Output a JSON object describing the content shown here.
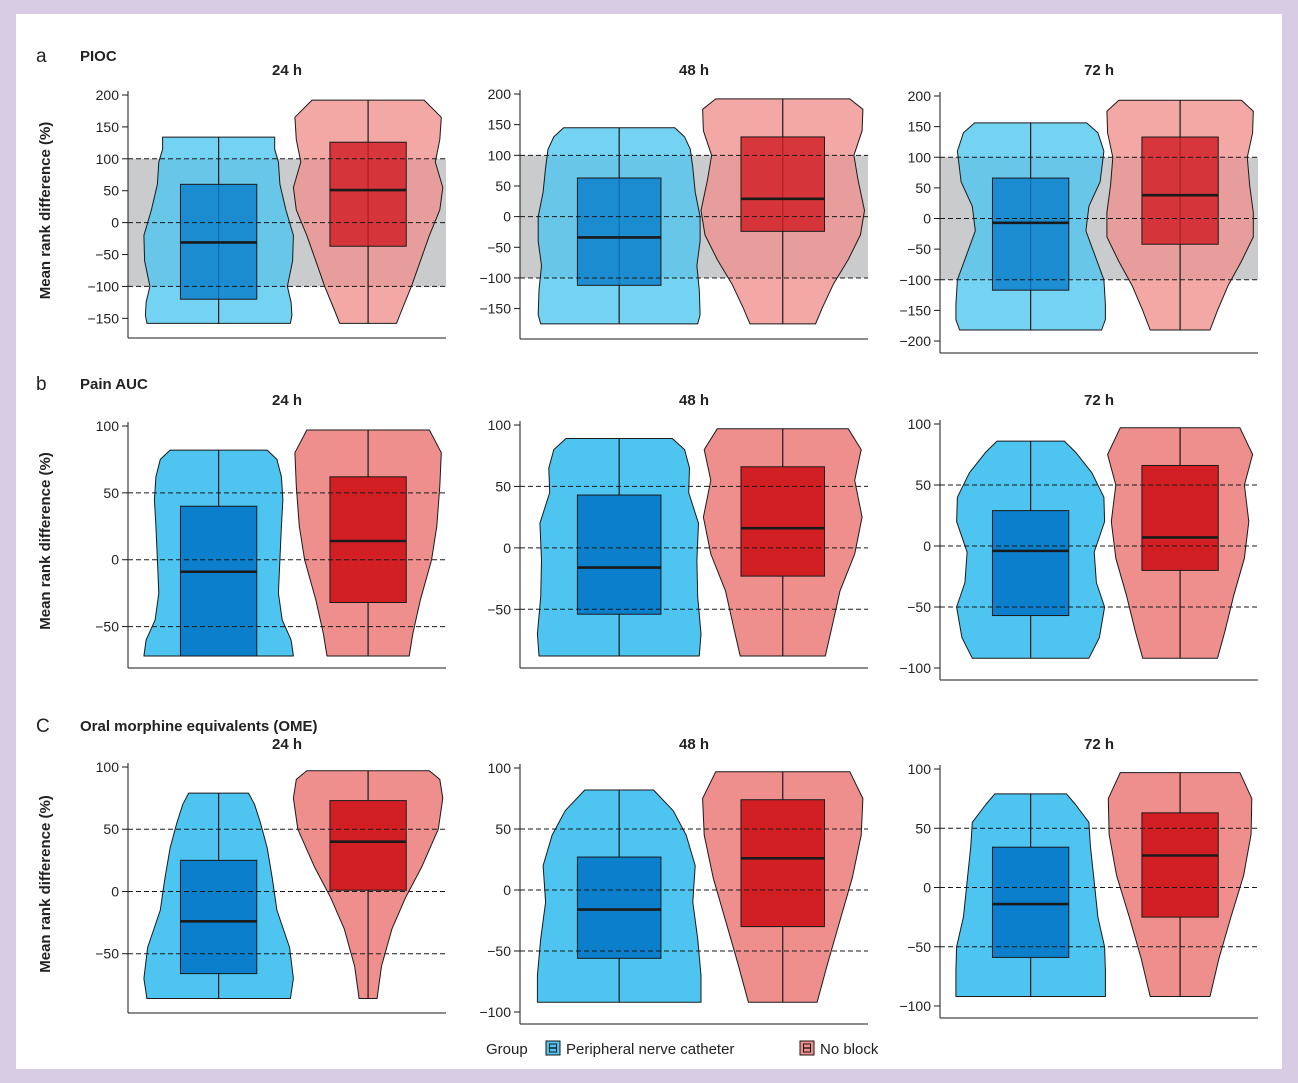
{
  "colors": {
    "catheter_violin": "#4dc5f0",
    "catheter_box": "#0b7fcc",
    "noblock_violin": "#ef8f8d",
    "noblock_box": "#d11f24",
    "band": "#c9cbcc"
  },
  "legend": {
    "title": "Group",
    "items": [
      "Peripheral nerve catheter",
      "No block"
    ]
  },
  "chart_data": [
    {
      "type": "violin",
      "panel": "a",
      "title": "PIOC",
      "subtitle": "24 h",
      "ylabel": "Mean rank difference (%)",
      "ylim": [
        -162,
        200
      ],
      "yticks": [
        200,
        150,
        100,
        50,
        0,
        -50,
        -100,
        -150
      ],
      "reference_lines": [
        100,
        0,
        -100
      ],
      "band": [
        -100,
        100
      ],
      "series": [
        {
          "name": "Peripheral nerve catheter",
          "min": -158,
          "q1": -120,
          "median": -31,
          "q3": 60,
          "max": 134,
          "violin": [
            [
              -158,
              0.96
            ],
            [
              -145,
              0.98
            ],
            [
              -125,
              0.97
            ],
            [
              -100,
              0.92
            ],
            [
              -60,
              0.99
            ],
            [
              -20,
              1.0
            ],
            [
              20,
              0.9
            ],
            [
              60,
              0.82
            ],
            [
              95,
              0.8
            ],
            [
              115,
              0.75
            ],
            [
              134,
              0.75
            ]
          ]
        },
        {
          "name": "No block",
          "min": -158,
          "q1": -37,
          "median": 51,
          "q3": 126,
          "max": 192,
          "violin": [
            [
              -158,
              0.38
            ],
            [
              -140,
              0.44
            ],
            [
              -100,
              0.58
            ],
            [
              -60,
              0.7
            ],
            [
              -20,
              0.82
            ],
            [
              20,
              0.96
            ],
            [
              55,
              1.0
            ],
            [
              95,
              0.9
            ],
            [
              130,
              0.96
            ],
            [
              165,
              0.98
            ],
            [
              192,
              0.75
            ]
          ]
        }
      ]
    },
    {
      "type": "violin",
      "panel": "a",
      "title": "",
      "subtitle": "48 h",
      "ylabel": "",
      "ylim": [
        -180,
        200
      ],
      "yticks": [
        200,
        150,
        100,
        50,
        0,
        -50,
        -100,
        -150
      ],
      "reference_lines": [
        100,
        0,
        -100
      ],
      "band": [
        -100,
        100
      ],
      "series": [
        {
          "name": "Peripheral nerve catheter",
          "min": -175,
          "q1": -112,
          "median": -34,
          "q3": 63,
          "max": 145,
          "violin": [
            [
              -175,
              0.96
            ],
            [
              -160,
              0.99
            ],
            [
              -120,
              0.98
            ],
            [
              -80,
              0.95
            ],
            [
              -40,
              0.99
            ],
            [
              0,
              0.99
            ],
            [
              40,
              0.93
            ],
            [
              80,
              0.9
            ],
            [
              110,
              0.87
            ],
            [
              130,
              0.8
            ],
            [
              145,
              0.68
            ]
          ]
        },
        {
          "name": "No block",
          "min": -175,
          "q1": -24,
          "median": 29,
          "q3": 130,
          "max": 192,
          "violin": [
            [
              -175,
              0.4
            ],
            [
              -150,
              0.48
            ],
            [
              -110,
              0.62
            ],
            [
              -70,
              0.8
            ],
            [
              -30,
              0.95
            ],
            [
              10,
              1.0
            ],
            [
              60,
              0.92
            ],
            [
              100,
              0.87
            ],
            [
              140,
              0.97
            ],
            [
              175,
              0.98
            ],
            [
              192,
              0.82
            ]
          ]
        }
      ]
    },
    {
      "type": "violin",
      "panel": "a",
      "title": "",
      "subtitle": "72 h",
      "ylabel": "",
      "ylim": [
        -200,
        200
      ],
      "yticks": [
        200,
        150,
        100,
        50,
        0,
        -50,
        -100,
        -150,
        -200
      ],
      "reference_lines": [
        100,
        0,
        -100
      ],
      "band": [
        -100,
        100
      ],
      "series": [
        {
          "name": "Peripheral nerve catheter",
          "min": -182,
          "q1": -117,
          "median": -7,
          "q3": 66,
          "max": 156,
          "violin": [
            [
              -182,
              0.95
            ],
            [
              -165,
              1.0
            ],
            [
              -140,
              1.0
            ],
            [
              -100,
              0.98
            ],
            [
              -60,
              0.86
            ],
            [
              -20,
              0.74
            ],
            [
              20,
              0.78
            ],
            [
              60,
              0.93
            ],
            [
              110,
              0.98
            ],
            [
              140,
              0.9
            ],
            [
              156,
              0.75
            ]
          ]
        },
        {
          "name": "No block",
          "min": -182,
          "q1": -42,
          "median": 38,
          "q3": 133,
          "max": 193,
          "violin": [
            [
              -182,
              0.4
            ],
            [
              -150,
              0.5
            ],
            [
              -110,
              0.64
            ],
            [
              -70,
              0.82
            ],
            [
              -30,
              0.98
            ],
            [
              10,
              0.98
            ],
            [
              55,
              0.93
            ],
            [
              100,
              0.9
            ],
            [
              140,
              0.97
            ],
            [
              175,
              0.98
            ],
            [
              193,
              0.82
            ]
          ]
        }
      ]
    },
    {
      "type": "violin",
      "panel": "b",
      "title": "Pain AUC",
      "subtitle": "24 h",
      "ylabel": "Mean rank difference (%)",
      "ylim": [
        -72,
        100
      ],
      "yticks": [
        100,
        50,
        0,
        -50
      ],
      "reference_lines": [
        50,
        0,
        -50
      ],
      "series": [
        {
          "name": "Peripheral nerve catheter",
          "min": -72,
          "q1": -72,
          "median": -9,
          "q3": 40,
          "max": 82,
          "violin": [
            [
              -72,
              1.0
            ],
            [
              -60,
              0.97
            ],
            [
              -45,
              0.85
            ],
            [
              -25,
              0.8
            ],
            [
              0,
              0.82
            ],
            [
              25,
              0.84
            ],
            [
              45,
              0.86
            ],
            [
              62,
              0.84
            ],
            [
              75,
              0.78
            ],
            [
              82,
              0.65
            ]
          ]
        },
        {
          "name": "No block",
          "min": -72,
          "q1": -32,
          "median": 14,
          "q3": 62,
          "max": 97,
          "violin": [
            [
              -72,
              0.55
            ],
            [
              -55,
              0.6
            ],
            [
              -30,
              0.7
            ],
            [
              0,
              0.85
            ],
            [
              25,
              0.92
            ],
            [
              55,
              0.96
            ],
            [
              80,
              0.98
            ],
            [
              97,
              0.82
            ]
          ]
        }
      ]
    },
    {
      "type": "violin",
      "panel": "b",
      "title": "",
      "subtitle": "48 h",
      "ylabel": "",
      "ylim": [
        -88,
        100
      ],
      "yticks": [
        100,
        50,
        0,
        -50
      ],
      "reference_lines": [
        50,
        0,
        -50
      ],
      "series": [
        {
          "name": "Peripheral nerve catheter",
          "min": -88,
          "q1": -54,
          "median": -16,
          "q3": 43,
          "max": 89,
          "violin": [
            [
              -88,
              0.98
            ],
            [
              -70,
              1.0
            ],
            [
              -40,
              0.96
            ],
            [
              -10,
              0.95
            ],
            [
              20,
              0.97
            ],
            [
              45,
              0.85
            ],
            [
              65,
              0.86
            ],
            [
              80,
              0.8
            ],
            [
              89,
              0.65
            ]
          ]
        },
        {
          "name": "No block",
          "min": -88,
          "q1": -23,
          "median": 16,
          "q3": 66,
          "max": 97,
          "violin": [
            [
              -88,
              0.52
            ],
            [
              -65,
              0.6
            ],
            [
              -35,
              0.7
            ],
            [
              -5,
              0.88
            ],
            [
              25,
              0.97
            ],
            [
              55,
              0.88
            ],
            [
              80,
              0.96
            ],
            [
              97,
              0.8
            ]
          ]
        }
      ]
    },
    {
      "type": "violin",
      "panel": "b",
      "title": "",
      "subtitle": "72 h",
      "ylabel": "",
      "ylim": [
        -100,
        100
      ],
      "yticks": [
        100,
        50,
        0,
        -50,
        -100
      ],
      "reference_lines": [
        50,
        0,
        -50
      ],
      "series": [
        {
          "name": "Peripheral nerve catheter",
          "min": -92,
          "q1": -57,
          "median": -4,
          "q3": 29,
          "max": 86,
          "violin": [
            [
              -92,
              0.78
            ],
            [
              -75,
              0.92
            ],
            [
              -50,
              0.99
            ],
            [
              -30,
              0.88
            ],
            [
              -5,
              0.85
            ],
            [
              20,
              0.99
            ],
            [
              40,
              0.98
            ],
            [
              60,
              0.82
            ],
            [
              77,
              0.6
            ],
            [
              86,
              0.45
            ]
          ]
        },
        {
          "name": "No block",
          "min": -92,
          "q1": -20,
          "median": 7,
          "q3": 66,
          "max": 97,
          "violin": [
            [
              -92,
              0.5
            ],
            [
              -70,
              0.6
            ],
            [
              -40,
              0.72
            ],
            [
              -10,
              0.86
            ],
            [
              20,
              0.92
            ],
            [
              50,
              0.86
            ],
            [
              75,
              0.97
            ],
            [
              97,
              0.8
            ]
          ]
        }
      ]
    },
    {
      "type": "violin",
      "panel": "c",
      "title": "Oral morphine equivalents (OME)",
      "subtitle": "24 h",
      "ylabel": "Mean rank difference (%)",
      "ylim": [
        -88,
        100
      ],
      "yticks": [
        100,
        50,
        0,
        -50
      ],
      "reference_lines": [
        50,
        0,
        -50
      ],
      "series": [
        {
          "name": "Peripheral nerve catheter",
          "min": -86,
          "q1": -66,
          "median": -24,
          "q3": 25,
          "max": 79,
          "violin": [
            [
              -86,
              0.96
            ],
            [
              -70,
              1.0
            ],
            [
              -45,
              0.95
            ],
            [
              -15,
              0.78
            ],
            [
              10,
              0.72
            ],
            [
              35,
              0.65
            ],
            [
              55,
              0.56
            ],
            [
              70,
              0.48
            ],
            [
              79,
              0.4
            ]
          ]
        },
        {
          "name": "No block",
          "min": -86,
          "q1": 1,
          "median": 40,
          "q3": 73,
          "max": 97,
          "violin": [
            [
              -86,
              0.12
            ],
            [
              -60,
              0.18
            ],
            [
              -30,
              0.32
            ],
            [
              -5,
              0.5
            ],
            [
              20,
              0.72
            ],
            [
              50,
              0.94
            ],
            [
              75,
              1.0
            ],
            [
              90,
              0.96
            ],
            [
              97,
              0.82
            ]
          ]
        }
      ]
    },
    {
      "type": "violin",
      "panel": "c",
      "title": "",
      "subtitle": "48 h",
      "ylabel": "",
      "ylim": [
        -100,
        100
      ],
      "yticks": [
        100,
        50,
        0,
        -50,
        -100
      ],
      "reference_lines": [
        50,
        0,
        -50
      ],
      "series": [
        {
          "name": "Peripheral nerve catheter",
          "min": -92,
          "q1": -56,
          "median": -16,
          "q3": 27,
          "max": 82,
          "violin": [
            [
              -92,
              1.0
            ],
            [
              -70,
              1.0
            ],
            [
              -40,
              0.96
            ],
            [
              -10,
              0.9
            ],
            [
              20,
              0.93
            ],
            [
              45,
              0.82
            ],
            [
              65,
              0.66
            ],
            [
              82,
              0.42
            ]
          ]
        },
        {
          "name": "No block",
          "min": -92,
          "q1": -30,
          "median": 26,
          "q3": 74,
          "max": 97,
          "violin": [
            [
              -92,
              0.42
            ],
            [
              -60,
              0.55
            ],
            [
              -25,
              0.7
            ],
            [
              10,
              0.85
            ],
            [
              45,
              0.96
            ],
            [
              75,
              0.98
            ],
            [
              97,
              0.82
            ]
          ]
        }
      ]
    },
    {
      "type": "violin",
      "panel": "c",
      "title": "",
      "subtitle": "72 h",
      "ylabel": "",
      "ylim": [
        -100,
        100
      ],
      "yticks": [
        100,
        50,
        0,
        -50,
        -100
      ],
      "reference_lines": [
        50,
        0,
        -50
      ],
      "series": [
        {
          "name": "Peripheral nerve catheter",
          "min": -92,
          "q1": -59,
          "median": -14,
          "q3": 34,
          "max": 79,
          "violin": [
            [
              -92,
              1.0
            ],
            [
              -70,
              1.0
            ],
            [
              -50,
              0.99
            ],
            [
              -25,
              0.9
            ],
            [
              5,
              0.85
            ],
            [
              35,
              0.8
            ],
            [
              55,
              0.78
            ],
            [
              70,
              0.6
            ],
            [
              79,
              0.48
            ]
          ]
        },
        {
          "name": "No block",
          "min": -92,
          "q1": -25,
          "median": 27,
          "q3": 63,
          "max": 97,
          "violin": [
            [
              -92,
              0.4
            ],
            [
              -60,
              0.52
            ],
            [
              -25,
              0.68
            ],
            [
              10,
              0.85
            ],
            [
              45,
              0.95
            ],
            [
              75,
              0.96
            ],
            [
              97,
              0.8
            ]
          ]
        }
      ]
    }
  ]
}
